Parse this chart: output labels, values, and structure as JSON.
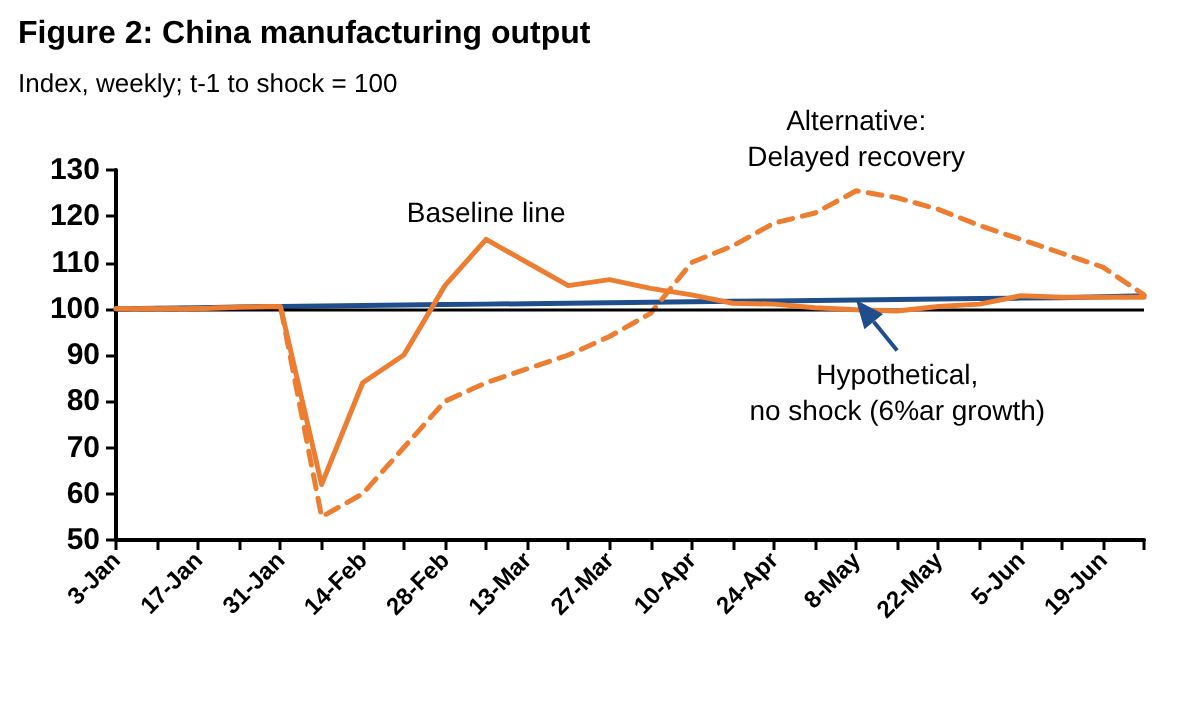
{
  "chart_data": {
    "type": "line",
    "title": "Figure 2: China manufacturing output",
    "subtitle": "Index, weekly; t-1 to shock = 100",
    "categories": [
      "3-Jan",
      null,
      "17-Jan",
      null,
      "31-Jan",
      null,
      "14-Feb",
      null,
      "28-Feb",
      null,
      "13-Mar",
      null,
      "27-Mar",
      null,
      "10-Apr",
      null,
      "24-Apr",
      null,
      "8-May",
      null,
      "22-May",
      null,
      "5-Jun",
      null,
      "19-Jun",
      null
    ],
    "series": [
      {
        "color": "#1f4e8c",
        "line_style": "solid",
        "values": [
          100,
          100.1,
          100.2,
          100.4,
          100.5,
          100.6,
          100.7,
          100.8,
          100.9,
          101,
          101.1,
          101.2,
          101.3,
          101.4,
          101.5,
          101.6,
          101.7,
          101.8,
          101.9,
          102,
          102.1,
          102.2,
          102.3,
          102.4,
          102.6,
          102.8
        ]
      },
      {
        "color": "#ed7d31",
        "line_style": "dashed",
        "values": [
          100,
          100,
          100,
          100.3,
          100.5,
          55,
          60,
          70,
          80,
          84,
          87,
          90,
          94,
          99,
          110,
          113.6,
          118.5,
          120.7,
          125.5,
          124,
          121.5,
          118,
          115,
          112,
          109,
          103
        ]
      },
      {
        "color": "#ed7d31",
        "line_style": "solid",
        "values": [
          100,
          100,
          100,
          100.3,
          100.5,
          62,
          84,
          90,
          105,
          115,
          110,
          105,
          106.3,
          104.4,
          103,
          101.2,
          101,
          100.2,
          99.8,
          99.5,
          100.5,
          101,
          102.8,
          102.5,
          102.5,
          102.5
        ]
      }
    ],
    "ylim": [
      50,
      130
    ],
    "yticks": [
      50,
      60,
      70,
      80,
      90,
      100,
      110,
      120,
      130
    ],
    "grid": false,
    "marker": "none",
    "ref_lines": [
      {
        "axis": "y",
        "value": 100,
        "color": "#000000",
        "line_style": "solid"
      }
    ],
    "annotations": [
      "Baseline line",
      "Alternative:\nDelayed recovery",
      "Hypothetical,\nno shock (6%ar growth)"
    ]
  }
}
